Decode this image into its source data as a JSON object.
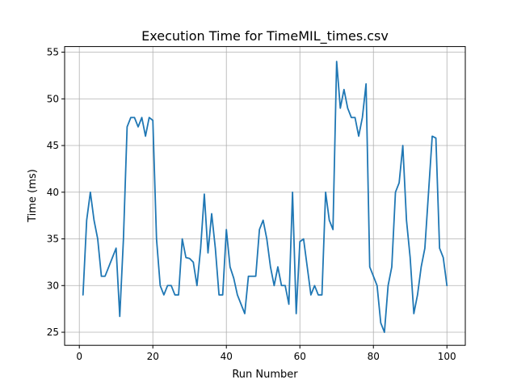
{
  "chart_data": {
    "type": "line",
    "title": "Execution Time for TimeMIL_times.csv",
    "xlabel": "Run Number",
    "ylabel": "Time (ms)",
    "xlim": [
      -4,
      105
    ],
    "ylim": [
      23.6,
      55.6
    ],
    "xticks": [
      0,
      20,
      40,
      60,
      80,
      100
    ],
    "yticks": [
      25,
      30,
      35,
      40,
      45,
      50,
      55
    ],
    "grid": true,
    "series": [
      {
        "color": "#1f77b4",
        "x": [
          1,
          2,
          3,
          4,
          5,
          6,
          7,
          8,
          9,
          10,
          11,
          12,
          13,
          14,
          15,
          16,
          17,
          18,
          19,
          20,
          21,
          22,
          23,
          24,
          25,
          26,
          27,
          28,
          29,
          30,
          31,
          32,
          33,
          34,
          35,
          36,
          37,
          38,
          39,
          40,
          41,
          42,
          43,
          44,
          45,
          46,
          47,
          48,
          49,
          50,
          51,
          52,
          53,
          54,
          55,
          56,
          57,
          58,
          59,
          60,
          61,
          62,
          63,
          64,
          65,
          66,
          67,
          68,
          69,
          70,
          71,
          72,
          73,
          74,
          75,
          76,
          77,
          78,
          79,
          80,
          81,
          82,
          83,
          84,
          85,
          86,
          87,
          88,
          89,
          90,
          91,
          92,
          93,
          94,
          95,
          96,
          97,
          98,
          99,
          100
        ],
        "values": [
          29,
          37,
          40,
          37,
          35,
          31,
          31,
          32,
          33,
          34,
          26.7,
          35,
          47,
          48,
          48,
          47,
          48,
          46,
          48,
          47.7,
          35,
          30,
          29,
          30,
          30,
          29,
          29,
          35,
          33,
          32.9,
          32.5,
          30,
          34,
          39.8,
          33.5,
          37.7,
          34,
          29,
          29,
          36,
          32,
          30.8,
          29,
          28,
          27,
          31,
          31,
          31,
          36,
          37,
          35,
          32,
          30,
          32,
          30,
          30,
          28,
          40,
          27,
          34.7,
          35,
          32,
          29,
          30,
          29,
          29,
          40,
          37,
          36,
          54,
          49,
          51,
          49,
          48,
          48,
          46,
          48,
          51.6,
          32,
          31,
          30,
          26,
          25,
          30,
          32,
          40,
          41,
          45,
          37,
          33,
          27,
          29,
          32,
          34,
          40,
          46,
          45.8,
          34,
          33,
          30
        ]
      }
    ]
  }
}
